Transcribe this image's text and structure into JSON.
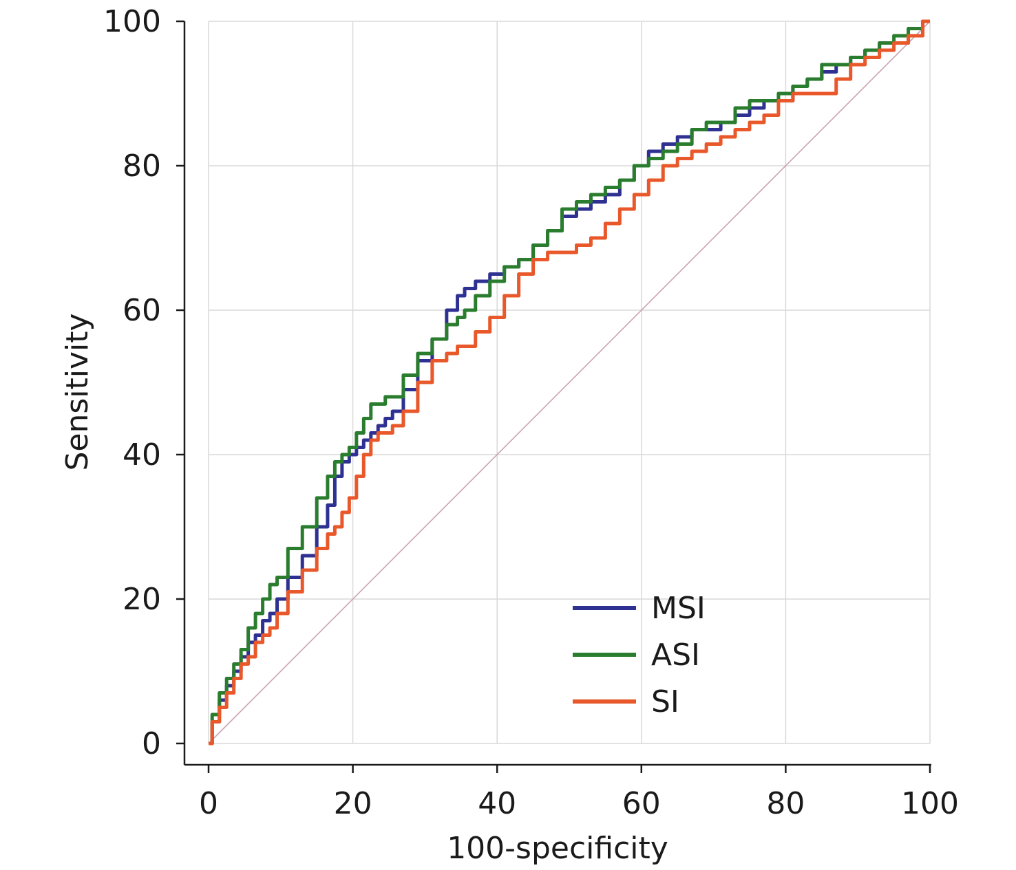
{
  "chart_data": {
    "type": "line",
    "xlabel": "100-specificity",
    "ylabel": "Sensitivity",
    "xlim": [
      0,
      100
    ],
    "ylim": [
      0,
      100
    ],
    "xticks": [
      0,
      20,
      40,
      60,
      80,
      100
    ],
    "yticks": [
      0,
      20,
      40,
      60,
      80,
      100
    ],
    "grid": true,
    "legend_position": "bottom-right",
    "reference_line": {
      "x": [
        0,
        100
      ],
      "y": [
        0,
        100
      ],
      "color": "#c9a3b4"
    },
    "series": [
      {
        "name": "MSI",
        "color": "#2e3192",
        "x": [
          0,
          1,
          2,
          3,
          4,
          5,
          6,
          7,
          8,
          9,
          10,
          12,
          14,
          16,
          17,
          18,
          19,
          20,
          21,
          22,
          23,
          24,
          25,
          26,
          28,
          30,
          32,
          34,
          35,
          36,
          38,
          40,
          42,
          44,
          46,
          48,
          50,
          52,
          54,
          56,
          58,
          60,
          62,
          64,
          66,
          68,
          70,
          72,
          74,
          76,
          78,
          80,
          82,
          84,
          86,
          88,
          90,
          92,
          94,
          96,
          98,
          100
        ],
        "y": [
          0,
          3,
          6,
          8,
          10,
          12,
          14,
          15,
          17,
          18,
          20,
          23,
          26,
          30,
          33,
          37,
          39,
          40,
          41,
          42,
          43,
          44,
          45,
          46,
          49,
          53,
          56,
          60,
          62,
          63,
          64,
          65,
          66,
          67,
          69,
          71,
          73,
          74,
          75,
          76,
          78,
          80,
          82,
          83,
          84,
          85,
          85,
          86,
          87,
          88,
          89,
          89,
          91,
          92,
          93,
          94,
          95,
          96,
          97,
          97,
          98,
          100
        ]
      },
      {
        "name": "ASI",
        "color": "#2a7d2e",
        "x": [
          0,
          1,
          2,
          3,
          4,
          5,
          6,
          7,
          8,
          9,
          10,
          12,
          14,
          16,
          17,
          18,
          19,
          20,
          21,
          22,
          23,
          24,
          25,
          26,
          28,
          30,
          32,
          34,
          35,
          36,
          38,
          40,
          42,
          44,
          46,
          48,
          50,
          52,
          54,
          56,
          58,
          60,
          62,
          64,
          66,
          68,
          70,
          72,
          74,
          76,
          78,
          80,
          82,
          84,
          86,
          88,
          90,
          92,
          94,
          96,
          98,
          100
        ],
        "y": [
          0,
          4,
          7,
          9,
          11,
          13,
          16,
          18,
          20,
          22,
          23,
          27,
          30,
          34,
          37,
          39,
          40,
          41,
          43,
          45,
          47,
          47,
          48,
          48,
          51,
          54,
          56,
          58,
          59,
          60,
          62,
          64,
          66,
          67,
          69,
          71,
          74,
          75,
          76,
          77,
          78,
          80,
          81,
          82,
          83,
          85,
          86,
          86,
          88,
          89,
          89,
          90,
          91,
          92,
          94,
          94,
          95,
          96,
          97,
          98,
          99,
          100
        ]
      },
      {
        "name": "SI",
        "color": "#e8582a",
        "x": [
          0,
          1,
          2,
          3,
          4,
          5,
          6,
          7,
          8,
          9,
          10,
          12,
          14,
          16,
          17,
          18,
          19,
          20,
          21,
          22,
          23,
          24,
          25,
          26,
          28,
          30,
          32,
          34,
          35,
          36,
          38,
          40,
          42,
          44,
          46,
          48,
          50,
          52,
          54,
          56,
          58,
          60,
          62,
          64,
          66,
          68,
          70,
          72,
          74,
          76,
          78,
          80,
          82,
          84,
          86,
          88,
          90,
          92,
          94,
          96,
          98,
          100
        ],
        "y": [
          0,
          3,
          5,
          7,
          9,
          11,
          12,
          14,
          15,
          16,
          18,
          21,
          24,
          27,
          29,
          30,
          32,
          34,
          37,
          40,
          42,
          43,
          43,
          44,
          46,
          50,
          53,
          54,
          55,
          55,
          57,
          59,
          62,
          65,
          67,
          68,
          68,
          69,
          70,
          72,
          74,
          76,
          78,
          80,
          81,
          82,
          83,
          84,
          85,
          86,
          87,
          89,
          90,
          90,
          90,
          92,
          94,
          95,
          96,
          97,
          98,
          100
        ]
      }
    ]
  }
}
